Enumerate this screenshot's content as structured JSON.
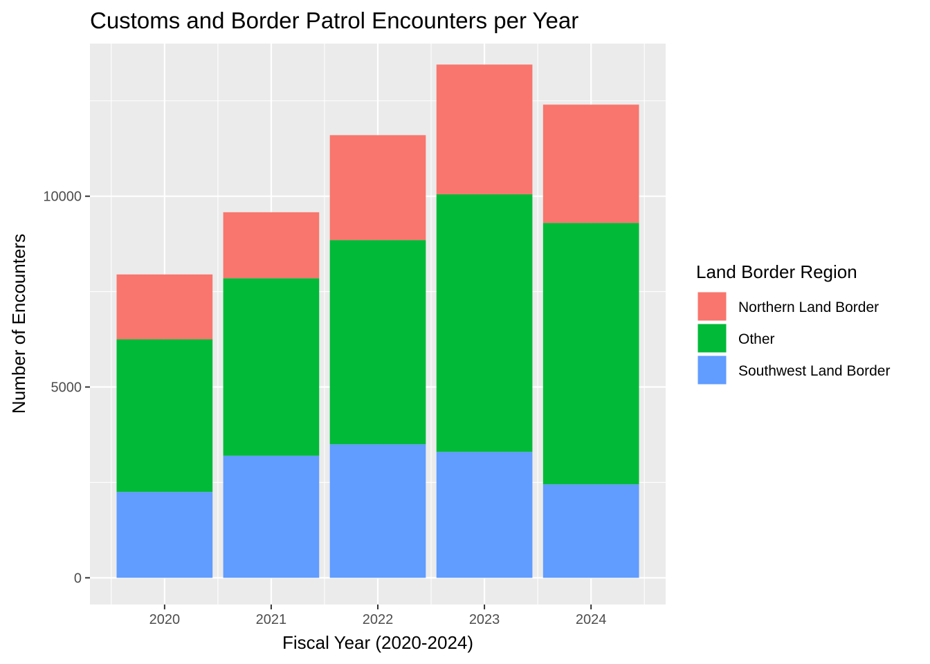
{
  "chart_data": {
    "type": "bar",
    "stacked": true,
    "title": "Customs and Border Patrol Encounters per Year",
    "xlabel": "Fiscal Year (2020-2024)",
    "ylabel": "Number of Encounters",
    "categories": [
      "2020",
      "2021",
      "2022",
      "2023",
      "2024"
    ],
    "ylim": [
      -700,
      14000
    ],
    "yticks": [
      0,
      5000,
      10000
    ],
    "ytick_labels": [
      "0",
      "5000",
      "10000"
    ],
    "grid": true,
    "legend": {
      "title": "Land Border Region",
      "position": "right",
      "entries": [
        "Northern Land Border",
        "Other",
        "Southwest Land Border"
      ]
    },
    "series": [
      {
        "name": "Southwest Land Border",
        "color": "#619CFF",
        "values": [
          2250,
          3200,
          3500,
          3300,
          2450
        ]
      },
      {
        "name": "Other",
        "color": "#00BA38",
        "values": [
          4000,
          4650,
          5350,
          6750,
          6850
        ]
      },
      {
        "name": "Northern Land Border",
        "color": "#F8766D",
        "values": [
          1700,
          1730,
          2750,
          3400,
          3100
        ]
      }
    ]
  }
}
